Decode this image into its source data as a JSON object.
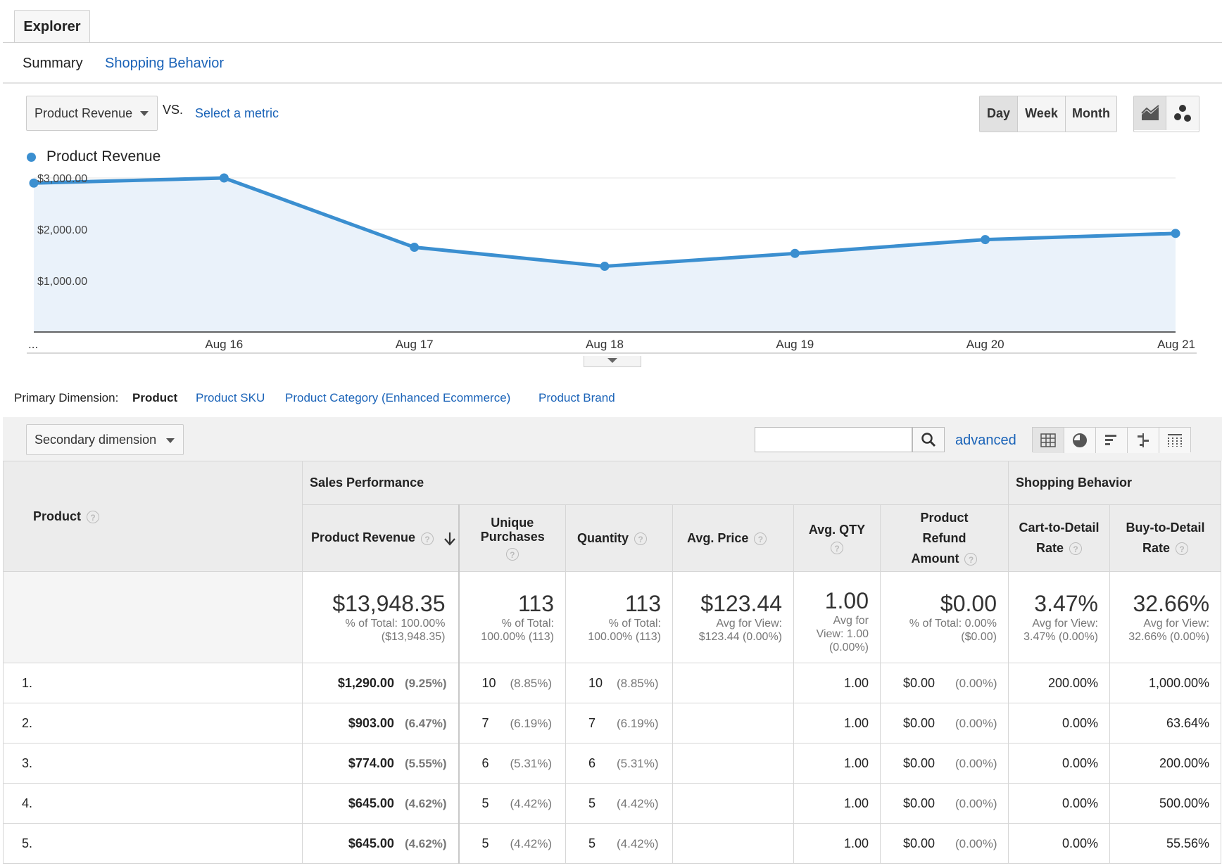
{
  "explorer_tab": "Explorer",
  "subtabs": {
    "summary": "Summary",
    "shopping": "Shopping Behavior"
  },
  "metric": {
    "selected": "Product Revenue",
    "vs": "VS.",
    "select_metric": "Select a metric"
  },
  "time_buttons": [
    "Day",
    "Week",
    "Month"
  ],
  "legend": "Product Revenue",
  "colors": {
    "series": "#3b8fd0",
    "link": "#1a63b8"
  },
  "chart_data": {
    "type": "area",
    "series": [
      {
        "name": "Product Revenue",
        "values": [
          2900,
          3000,
          1650,
          1280,
          1530,
          1800,
          1920
        ]
      }
    ],
    "categories": [
      "...",
      "Aug 16",
      "Aug 17",
      "Aug 18",
      "Aug 19",
      "Aug 20",
      "Aug 21"
    ],
    "y_ticks": [
      "$3,000.00",
      "$2,000.00",
      "$1,000.00"
    ],
    "ylim": [
      0,
      3000
    ],
    "grid": true
  },
  "dimension": {
    "label": "Primary Dimension:",
    "active": "Product",
    "options": [
      "Product SKU",
      "Product Category (Enhanced Ecommerce)",
      "Product Brand"
    ]
  },
  "secondary_dimension": "Secondary dimension",
  "search": {
    "value": "",
    "advanced": "advanced"
  },
  "table": {
    "group_sales": "Sales Performance",
    "group_shopping": "Shopping Behavior",
    "col_product": "Product",
    "cols": {
      "revenue": "Product Revenue",
      "unique": "Unique Purchases",
      "quantity": "Quantity",
      "avg_price": "Avg. Price",
      "avg_qty": "Avg. QTY",
      "refund": "Product Refund Amount",
      "cart_detail": "Cart-to-Detail Rate",
      "buy_detail": "Buy-to-Detail Rate"
    },
    "totals": {
      "revenue": "$13,948.35",
      "revenue_sub1": "% of Total: 100.00%",
      "revenue_sub2": "($13,948.35)",
      "unique": "113",
      "unique_sub1": "% of Total:",
      "unique_sub2": "100.00% (113)",
      "quantity": "113",
      "quantity_sub1": "% of Total:",
      "quantity_sub2": "100.00% (113)",
      "avg_price": "$123.44",
      "avg_price_sub1": "Avg for View:",
      "avg_price_sub2": "$123.44 (0.00%)",
      "avg_qty": "1.00",
      "avg_qty_sub1": "Avg for",
      "avg_qty_sub2": "View: 1.00",
      "avg_qty_sub3": "(0.00%)",
      "refund": "$0.00",
      "refund_sub1": "% of Total: 0.00%",
      "refund_sub2": "($0.00)",
      "cart": "3.47%",
      "cart_sub1": "Avg for View:",
      "cart_sub2": "3.47% (0.00%)",
      "buy": "32.66%",
      "buy_sub1": "Avg for View:",
      "buy_sub2": "32.66% (0.00%)"
    },
    "rows": [
      {
        "idx": "1.",
        "revenue": "$1,290.00",
        "revenue_pct": "(9.25%)",
        "unique": "10",
        "unique_pct": "(8.85%)",
        "qty": "10",
        "qty_pct": "(8.85%)",
        "avg_qty": "1.00",
        "refund": "$0.00",
        "refund_pct": "(0.00%)",
        "cart": "200.00%",
        "buy": "1,000.00%"
      },
      {
        "idx": "2.",
        "revenue": "$903.00",
        "revenue_pct": "(6.47%)",
        "unique": "7",
        "unique_pct": "(6.19%)",
        "qty": "7",
        "qty_pct": "(6.19%)",
        "avg_qty": "1.00",
        "refund": "$0.00",
        "refund_pct": "(0.00%)",
        "cart": "0.00%",
        "buy": "63.64%"
      },
      {
        "idx": "3.",
        "revenue": "$774.00",
        "revenue_pct": "(5.55%)",
        "unique": "6",
        "unique_pct": "(5.31%)",
        "qty": "6",
        "qty_pct": "(5.31%)",
        "avg_qty": "1.00",
        "refund": "$0.00",
        "refund_pct": "(0.00%)",
        "cart": "0.00%",
        "buy": "200.00%"
      },
      {
        "idx": "4.",
        "revenue": "$645.00",
        "revenue_pct": "(4.62%)",
        "unique": "5",
        "unique_pct": "(4.42%)",
        "qty": "5",
        "qty_pct": "(4.42%)",
        "avg_qty": "1.00",
        "refund": "$0.00",
        "refund_pct": "(0.00%)",
        "cart": "0.00%",
        "buy": "500.00%"
      },
      {
        "idx": "5.",
        "revenue": "$645.00",
        "revenue_pct": "(4.62%)",
        "unique": "5",
        "unique_pct": "(4.42%)",
        "qty": "5",
        "qty_pct": "(4.42%)",
        "avg_qty": "1.00",
        "refund": "$0.00",
        "refund_pct": "(0.00%)",
        "cart": "0.00%",
        "buy": "55.56%"
      }
    ]
  }
}
